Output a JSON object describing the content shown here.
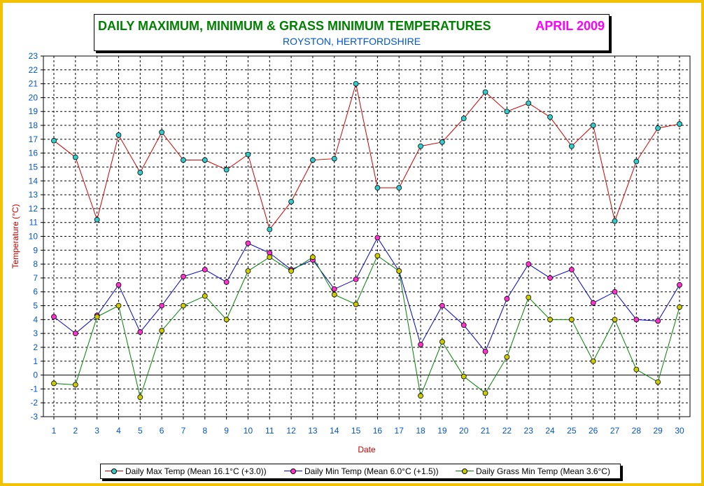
{
  "title": {
    "main": "DAILY MAXIMUM, MINIMUM & GRASS MINIMUM TEMPERATURES",
    "period": "APRIL 2009",
    "location": "ROYSTON, HERTFORDSHIRE"
  },
  "colors": {
    "frame": "#f2c200",
    "title_main": "#008000",
    "title_period": "#ff00ff",
    "title_location": "#0055cc",
    "axis_labels": "#cc0000",
    "tick_labels": "#0055cc"
  },
  "chart_data": {
    "type": "line",
    "xlabel": "Date",
    "ylabel": "Temperature (°C)",
    "ylim": [
      -3,
      23
    ],
    "xlim": [
      1,
      30
    ],
    "grid": true,
    "legend_position": "bottom",
    "x": [
      1,
      2,
      3,
      4,
      5,
      6,
      7,
      8,
      9,
      10,
      11,
      12,
      13,
      14,
      15,
      16,
      17,
      18,
      19,
      20,
      21,
      22,
      23,
      24,
      25,
      26,
      27,
      28,
      29,
      30
    ],
    "yticks": [
      -3,
      -2,
      -1,
      0,
      1,
      2,
      3,
      4,
      5,
      6,
      7,
      8,
      9,
      10,
      11,
      12,
      13,
      14,
      15,
      16,
      17,
      18,
      19,
      20,
      21,
      22,
      23
    ],
    "series": [
      {
        "name": "Daily Max Temp (Mean 16.1°C (+3.0))",
        "line_color": "#cc0000",
        "marker_color": "#33cccc",
        "values": [
          16.9,
          15.7,
          11.2,
          17.3,
          14.6,
          17.5,
          15.5,
          15.5,
          14.8,
          15.9,
          10.5,
          12.5,
          15.5,
          15.6,
          21.0,
          13.5,
          13.5,
          16.5,
          16.8,
          18.5,
          20.4,
          19.0,
          19.6,
          18.6,
          16.5,
          18.0,
          11.1,
          15.4,
          17.8,
          18.1
        ]
      },
      {
        "name": "Daily Min Temp (Mean 6.0°C (+1.5))",
        "line_color": "#0000cc",
        "marker_color": "#ff33cc",
        "values": [
          4.2,
          3.0,
          4.3,
          6.5,
          3.1,
          5.0,
          7.1,
          7.6,
          6.7,
          9.5,
          8.8,
          7.6,
          8.3,
          6.2,
          6.9,
          9.9,
          7.5,
          2.2,
          5.0,
          3.6,
          1.7,
          5.5,
          8.0,
          7.0,
          7.6,
          5.2,
          6.0,
          4.0,
          3.9,
          6.5
        ]
      },
      {
        "name": "Daily Grass Min Temp (Mean 3.6°C)",
        "line_color": "#008000",
        "marker_color": "#cccc00",
        "values": [
          -0.6,
          -0.7,
          4.2,
          5.0,
          -1.6,
          3.2,
          5.0,
          5.7,
          4.0,
          7.5,
          8.5,
          7.5,
          8.5,
          5.8,
          5.1,
          8.6,
          7.5,
          -1.5,
          2.4,
          -0.1,
          -1.3,
          1.3,
          5.6,
          4.0,
          4.0,
          1.0,
          4.0,
          0.4,
          -0.5,
          4.9
        ]
      }
    ]
  }
}
